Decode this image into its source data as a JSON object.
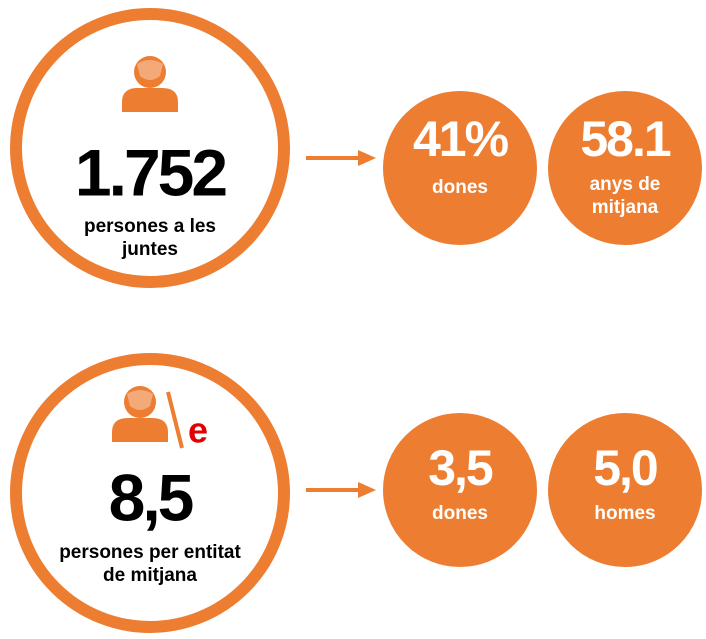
{
  "rows": [
    {
      "main": {
        "number": "1.752",
        "label": [
          "persones a les",
          "juntes"
        ]
      },
      "stats": [
        {
          "value": "41%",
          "label": [
            "dones"
          ]
        },
        {
          "value": "58.1",
          "label": [
            "anys de",
            "mitjana"
          ]
        }
      ]
    },
    {
      "main": {
        "suffix": "e",
        "number": "8,5",
        "label": [
          "persones per entitat",
          "de mitjana"
        ]
      },
      "stats": [
        {
          "value": "3,5",
          "label": [
            "dones"
          ]
        },
        {
          "value": "5,0",
          "label": [
            "homes"
          ]
        }
      ]
    }
  ]
}
